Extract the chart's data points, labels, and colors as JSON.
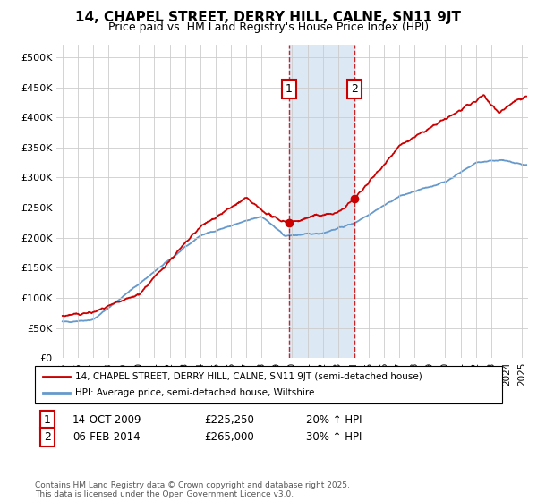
{
  "title": "14, CHAPEL STREET, DERRY HILL, CALNE, SN11 9JT",
  "subtitle": "Price paid vs. HM Land Registry's House Price Index (HPI)",
  "ylabel_ticks": [
    "£0",
    "£50K",
    "£100K",
    "£150K",
    "£200K",
    "£250K",
    "£300K",
    "£350K",
    "£400K",
    "£450K",
    "£500K"
  ],
  "ytick_vals": [
    0,
    50000,
    100000,
    150000,
    200000,
    250000,
    300000,
    350000,
    400000,
    450000,
    500000
  ],
  "xlim_start": 1994.6,
  "xlim_end": 2025.4,
  "ylim": [
    0,
    520000
  ],
  "marker1_x": 2009.79,
  "marker1_y": 225250,
  "marker2_x": 2014.09,
  "marker2_y": 265000,
  "marker1_label": "1",
  "marker1_date": "14-OCT-2009",
  "marker1_price": "£225,250",
  "marker1_hpi": "20% ↑ HPI",
  "marker2_label": "2",
  "marker2_date": "06-FEB-2014",
  "marker2_price": "£265,000",
  "marker2_hpi": "30% ↑ HPI",
  "shade_color": "#dce9f5",
  "line1_color": "#cc0000",
  "line2_color": "#6699cc",
  "dot_color": "#cc0000",
  "legend_line1": "14, CHAPEL STREET, DERRY HILL, CALNE, SN11 9JT (semi-detached house)",
  "legend_line2": "HPI: Average price, semi-detached house, Wiltshire",
  "footer": "Contains HM Land Registry data © Crown copyright and database right 2025.\nThis data is licensed under the Open Government Licence v3.0.",
  "background_color": "#ffffff",
  "grid_color": "#cccccc",
  "title_fontsize": 11,
  "subtitle_fontsize": 9
}
